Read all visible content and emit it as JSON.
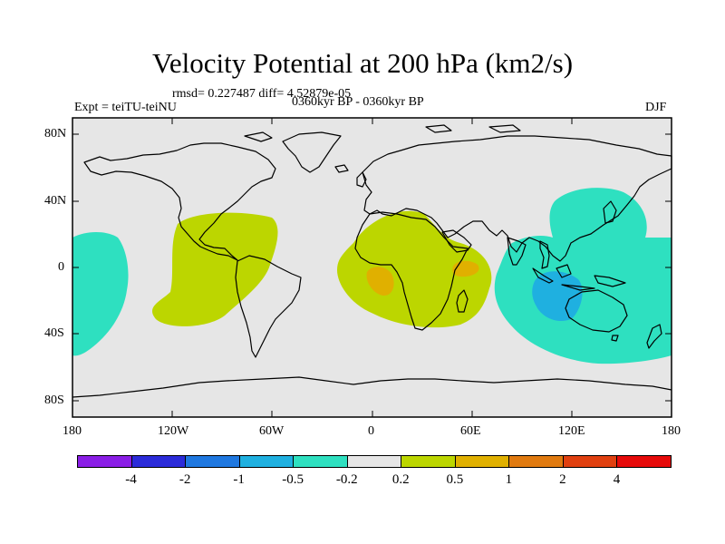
{
  "title": "Velocity Potential at 200 hPa (km2/s)",
  "stats": "rmsd= 0.227487 diff= 4.52879e-05",
  "left_label": "Expt = teiTU-teiNU",
  "center_label": "0360kyr BP - 0360kyr BP",
  "right_label": "DJF",
  "lat_ticks": [
    "80N",
    "40N",
    "0",
    "40S",
    "80S"
  ],
  "lon_ticks": [
    "180",
    "120W",
    "60W",
    "0",
    "60E",
    "120E",
    "180"
  ],
  "colorbar": {
    "colors": [
      "#8a1ee6",
      "#2b2bd9",
      "#1f78e0",
      "#1fb0e0",
      "#2ee0c0",
      "#e6e6e6",
      "#bcd600",
      "#e0b000",
      "#e07a10",
      "#e04010",
      "#e60a0a"
    ],
    "labels": [
      "-4",
      "-2",
      "-1",
      "-0.5",
      "-0.2",
      "0.2",
      "0.5",
      "1",
      "2",
      "4"
    ]
  },
  "field": {
    "positive_regions": [
      "Americas",
      "Africa",
      "Indian Ocean"
    ],
    "negative_regions": [
      "East Pacific",
      "West Pacific / Australia"
    ]
  }
}
